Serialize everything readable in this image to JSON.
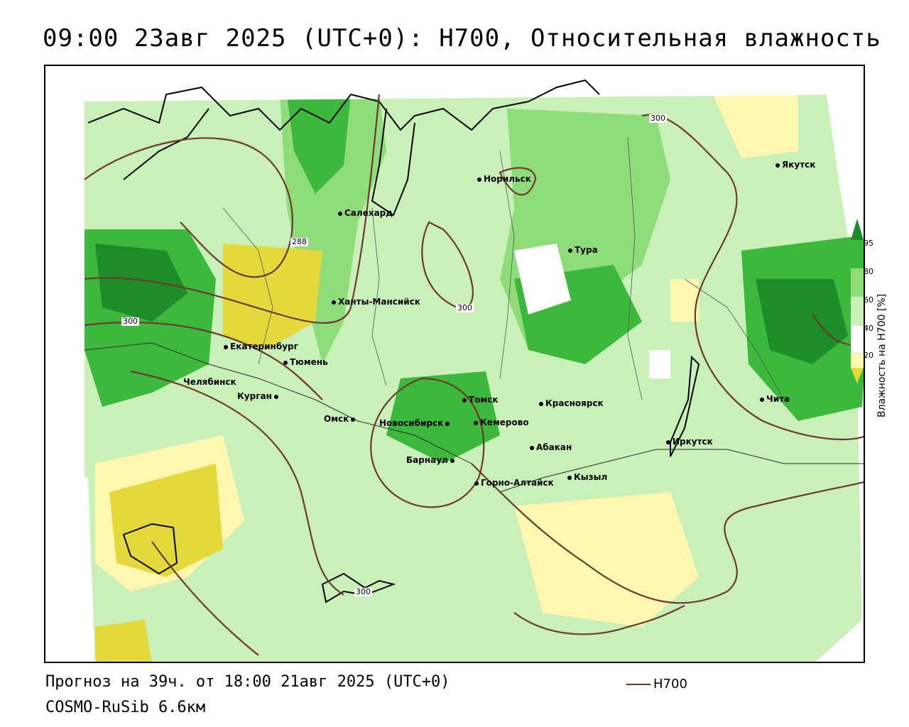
{
  "header": {
    "title": "09:00 23авг 2025 (UTC+0): H700, Относительная влажность"
  },
  "map": {
    "contour_labels": [
      "288",
      "300",
      "300",
      "300",
      "300"
    ],
    "cities": [
      {
        "name": "Норильск"
      },
      {
        "name": "Якутск"
      },
      {
        "name": "Салехард"
      },
      {
        "name": "Тура"
      },
      {
        "name": "Ханты-Мансийск"
      },
      {
        "name": "Екатеринбург"
      },
      {
        "name": "Тюмень"
      },
      {
        "name": "Челябинск"
      },
      {
        "name": "Курган"
      },
      {
        "name": "Омск"
      },
      {
        "name": "Новосибирск"
      },
      {
        "name": "Томск"
      },
      {
        "name": "Кемерово"
      },
      {
        "name": "Красноярск"
      },
      {
        "name": "Барнаул"
      },
      {
        "name": "Абакан"
      },
      {
        "name": "Горно-Алтайск"
      },
      {
        "name": "Кызыл"
      },
      {
        "name": "Иркутск"
      },
      {
        "name": "Чита"
      }
    ],
    "colors": {
      "very_dry": "#e3d93a",
      "dry": "#fff7b0",
      "moderate": "#ffffff",
      "moist": "#c8f0b8",
      "wet": "#8fdc7a",
      "very_wet": "#3cb83c",
      "saturated": "#1e8c28",
      "contour": "#6b3a2a"
    }
  },
  "legend": {
    "title": "Влажность на H700 [%]",
    "ticks": [
      "95",
      "80",
      "60",
      "40",
      "20"
    ]
  },
  "footer": {
    "forecast": "Прогноз на 39ч. от 18:00 21авг 2025 (UTC+0)",
    "model": "COSMO-RuSib 6.6км",
    "series_label": "H700"
  }
}
